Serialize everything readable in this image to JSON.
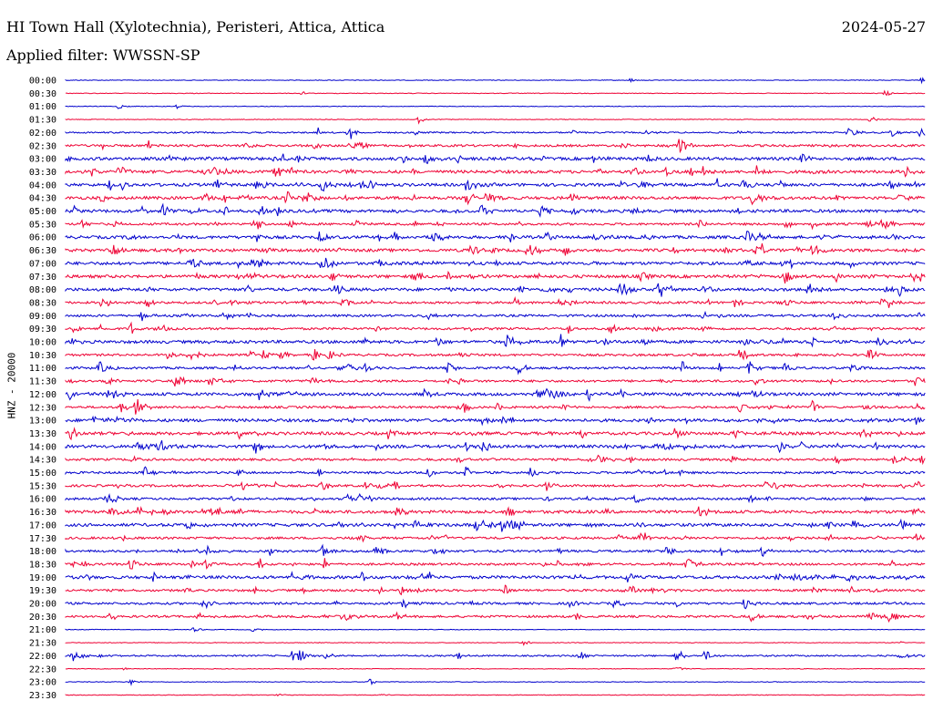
{
  "header": {
    "station": "HI Town Hall (Xylotechnia), Peristeri, Attica, Attica",
    "date": "2024-05-27",
    "filter": "Applied filter: WWSSN-SP"
  },
  "chart_data": {
    "type": "line",
    "title": "HI Town Hall (Xylotechnia), Peristeri, Attica, Attica",
    "ylabel": "HNZ - 20000",
    "xlabel": "",
    "colors": [
      "#0000cc",
      "#ee0033"
    ],
    "grid": false,
    "legend": "none",
    "rows": [
      "00:00",
      "00:30",
      "01:00",
      "01:30",
      "02:00",
      "02:30",
      "03:00",
      "03:30",
      "04:00",
      "04:30",
      "05:00",
      "05:30",
      "06:00",
      "06:30",
      "07:00",
      "07:30",
      "08:00",
      "08:30",
      "09:00",
      "09:30",
      "10:00",
      "10:30",
      "11:00",
      "11:30",
      "12:00",
      "12:30",
      "13:00",
      "13:30",
      "14:00",
      "14:30",
      "15:00",
      "15:30",
      "16:00",
      "16:30",
      "17:00",
      "17:30",
      "18:00",
      "18:30",
      "19:00",
      "19:30",
      "20:00",
      "20:30",
      "21:00",
      "21:30",
      "22:00",
      "22:30",
      "23:00",
      "23:30"
    ],
    "activity": [
      1,
      1,
      1,
      1,
      2,
      3,
      4,
      4,
      4,
      4,
      4,
      3,
      4,
      4,
      4,
      4,
      4,
      3,
      3,
      3,
      4,
      3,
      3,
      3,
      4,
      3,
      4,
      4,
      4,
      3,
      3,
      3,
      3,
      4,
      4,
      3,
      3,
      3,
      4,
      3,
      3,
      3,
      1,
      1,
      2,
      1,
      1,
      1
    ]
  }
}
